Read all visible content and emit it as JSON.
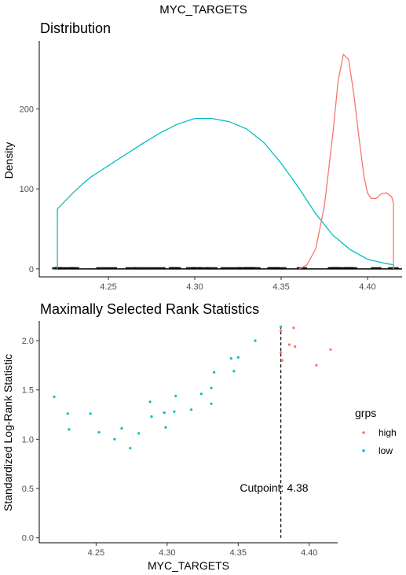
{
  "figure": {
    "title": "MYC_TARGETS",
    "colors": {
      "high": "#F8766D",
      "low": "#00BFC4",
      "axis": "#000000",
      "rug": "#000000"
    }
  },
  "chart_data": [
    {
      "type": "line",
      "title": "Distribution",
      "xlabel": "",
      "ylabel": "Density",
      "xlim": [
        4.21,
        4.42
      ],
      "ylim": [
        -10,
        285
      ],
      "xticks": [
        "4.25",
        "4.30",
        "4.35",
        "4.40"
      ],
      "yticks": [
        "0",
        "100",
        "200"
      ],
      "grid": false,
      "series": [
        {
          "name": "low",
          "color": "#00BFC4",
          "x": [
            4.2205,
            4.2205,
            4.225,
            4.23,
            4.235,
            4.24,
            4.25,
            4.26,
            4.27,
            4.28,
            4.29,
            4.3,
            4.31,
            4.32,
            4.33,
            4.34,
            4.35,
            4.36,
            4.37,
            4.38,
            4.39,
            4.4,
            4.41,
            4.415,
            4.415
          ],
          "y": [
            0,
            75,
            85,
            96,
            106,
            115,
            129,
            143,
            157,
            170,
            181,
            188,
            188,
            184,
            175,
            158,
            132,
            102,
            69,
            42,
            24,
            12,
            7,
            5,
            0
          ]
        },
        {
          "name": "high",
          "color": "#F8766D",
          "x": [
            4.3605,
            4.365,
            4.37,
            4.375,
            4.38,
            4.383,
            4.386,
            4.389,
            4.392,
            4.395,
            4.398,
            4.4,
            4.402,
            4.405,
            4.408,
            4.411,
            4.414,
            4.415,
            4.415
          ],
          "y": [
            0,
            5,
            25,
            78,
            170,
            235,
            268,
            262,
            220,
            165,
            115,
            95,
            88,
            88,
            94,
            95,
            90,
            82,
            0
          ]
        }
      ],
      "rug": [
        4.2205,
        4.222,
        4.228,
        4.23,
        4.246,
        4.252,
        4.263,
        4.268,
        4.274,
        4.28,
        4.288,
        4.289,
        4.298,
        4.301,
        4.305,
        4.31,
        4.318,
        4.324,
        4.328,
        4.331,
        4.332,
        4.335,
        4.345,
        4.346,
        4.35,
        4.362,
        4.38,
        4.381,
        4.382,
        4.386,
        4.389,
        4.391,
        4.405,
        4.415
      ]
    },
    {
      "type": "scatter",
      "title": "Maximally Selected Rank Statistics",
      "xlabel": "MYC_TARGETS",
      "ylabel": "Standardized Log-Rank Statistic",
      "xlim": [
        4.21,
        4.42
      ],
      "ylim": [
        -0.05,
        2.2
      ],
      "xticks": [
        "4.25",
        "4.30",
        "4.35",
        "4.40"
      ],
      "yticks": [
        "0.0",
        "0.5",
        "1.0",
        "1.5",
        "2.0"
      ],
      "grid": false,
      "legend": {
        "title": "grps",
        "position": "right",
        "entries": [
          "high",
          "low"
        ]
      },
      "cutpoint": {
        "value": 4.38,
        "label": "Cutpoint: 4.38"
      },
      "series": [
        {
          "name": "high",
          "color": "#F8766D",
          "points": [
            [
              4.38,
              2.1
            ],
            [
              4.38,
              1.88
            ],
            [
              4.381,
              1.8
            ],
            [
              4.386,
              1.96
            ],
            [
              4.389,
              2.13
            ],
            [
              4.39,
              1.94
            ],
            [
              4.405,
              1.75
            ],
            [
              4.415,
              1.91
            ]
          ]
        },
        {
          "name": "low",
          "color": "#00BFC4",
          "points": [
            [
              4.2205,
              1.43
            ],
            [
              4.23,
              1.26
            ],
            [
              4.231,
              1.1
            ],
            [
              4.246,
              1.26
            ],
            [
              4.252,
              1.07
            ],
            [
              4.263,
              1.0
            ],
            [
              4.268,
              1.11
            ],
            [
              4.274,
              0.91
            ],
            [
              4.28,
              1.06
            ],
            [
              4.288,
              1.38
            ],
            [
              4.289,
              1.23
            ],
            [
              4.298,
              1.27
            ],
            [
              4.299,
              1.12
            ],
            [
              4.305,
              1.28
            ],
            [
              4.306,
              1.44
            ],
            [
              4.317,
              1.3
            ],
            [
              4.324,
              1.46
            ],
            [
              4.331,
              1.52
            ],
            [
              4.331,
              1.36
            ],
            [
              4.333,
              1.68
            ],
            [
              4.345,
              1.82
            ],
            [
              4.347,
              1.69
            ],
            [
              4.35,
              1.83
            ],
            [
              4.362,
              2.0
            ],
            [
              4.38,
              2.14
            ]
          ]
        }
      ]
    }
  ]
}
